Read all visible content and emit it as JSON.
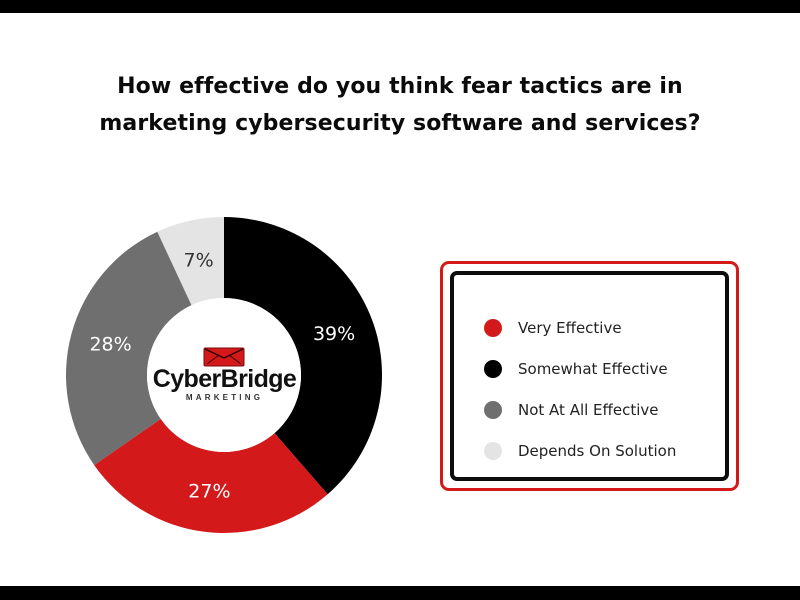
{
  "title": {
    "line1": "How effective do you think fear tactics are in",
    "line2": "marketing cybersecurity software and services?"
  },
  "logo": {
    "name": "CyberBridge",
    "subtitle": "MARKETING"
  },
  "colors": {
    "red": "#d4191b",
    "black": "#000000",
    "gray": "#6f6f6f",
    "light_gray": "#e4e4e4"
  },
  "chart_data": {
    "type": "pie",
    "donut": true,
    "start": "12 o'clock, clockwise",
    "categories": [
      "Somewhat Effective",
      "Very Effective",
      "Not At All Effective",
      "Depends On Solution"
    ],
    "values": [
      39,
      27,
      28,
      7
    ],
    "value_labels": [
      "39%",
      "27%",
      "28%",
      "7%"
    ],
    "slice_colors": [
      "#000000",
      "#d4191b",
      "#6f6f6f",
      "#e4e4e4"
    ],
    "label_colors": [
      "#ffffff",
      "#ffffff",
      "#ffffff",
      "#333333"
    ],
    "legend_position": "right"
  },
  "legend": {
    "items": [
      {
        "label": "Very Effective",
        "color": "#d4191b"
      },
      {
        "label": "Somewhat Effective",
        "color": "#000000"
      },
      {
        "label": "Not At All Effective",
        "color": "#6f6f6f"
      },
      {
        "label": "Depends On Solution",
        "color": "#e4e4e4"
      }
    ]
  }
}
